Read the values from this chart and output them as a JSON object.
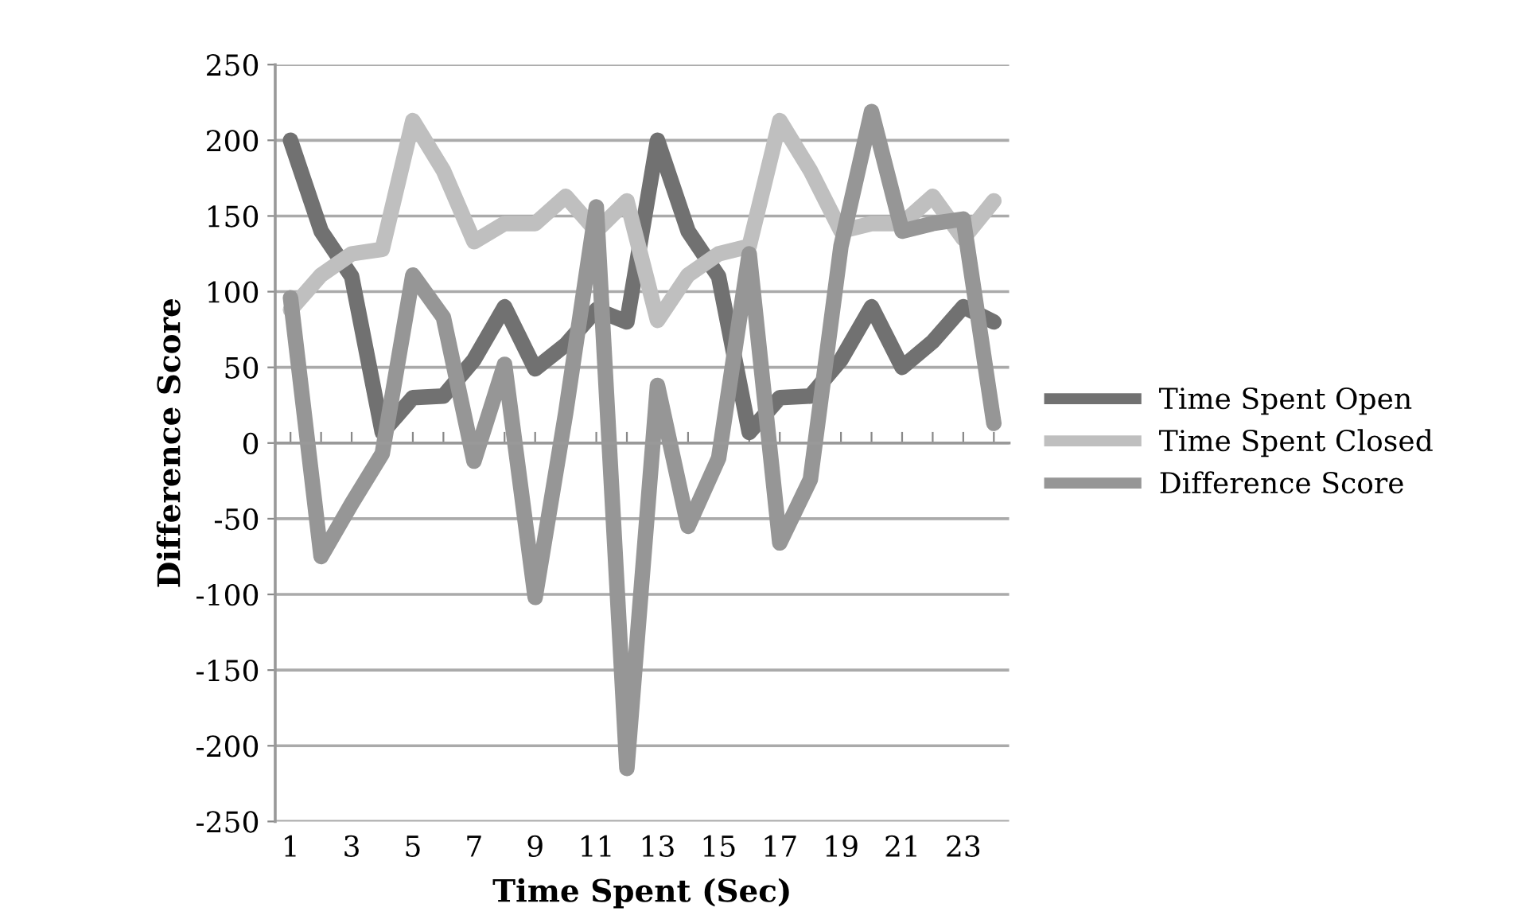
{
  "chart_data": {
    "type": "line",
    "xlabel": "Time Spent (Sec)",
    "ylabel": "Difference Score",
    "categories": [
      "1",
      null,
      "3",
      null,
      "5",
      null,
      "7",
      null,
      "9",
      null,
      "11",
      null,
      "13",
      null,
      "15",
      null,
      "17",
      null,
      "19",
      null,
      "21",
      null,
      "23",
      null
    ],
    "series": [
      {
        "name": "Time Spent Open",
        "color": "#717171",
        "values": [
          200,
          140,
          110,
          7,
          30,
          31,
          55,
          90,
          49,
          65,
          88,
          80,
          200,
          140,
          110,
          7,
          30,
          31,
          55,
          90,
          50,
          67,
          90,
          80
        ]
      },
      {
        "name": "Time Spent Closed",
        "color": "#bfbfbf",
        "values": [
          88,
          111,
          125,
          128,
          213,
          180,
          133,
          145,
          145,
          163,
          140,
          160,
          81,
          111,
          125,
          130,
          213,
          180,
          140,
          145,
          145,
          163,
          135,
          160
        ]
      },
      {
        "name": "Difference Score",
        "color": "#969696",
        "values": [
          96,
          -75,
          -40,
          -7,
          111,
          83,
          -12,
          52,
          -102,
          20,
          156,
          -215,
          38,
          -55,
          -10,
          125,
          -66,
          -24,
          130,
          219,
          140,
          145,
          148,
          13
        ]
      }
    ],
    "ylim": [
      -250,
      250
    ],
    "yticks": [
      -250,
      -200,
      -150,
      -100,
      -50,
      0,
      50,
      100,
      150,
      200,
      250
    ],
    "grid": "y",
    "legend": "right",
    "marker": "none",
    "line_style": "solid"
  }
}
